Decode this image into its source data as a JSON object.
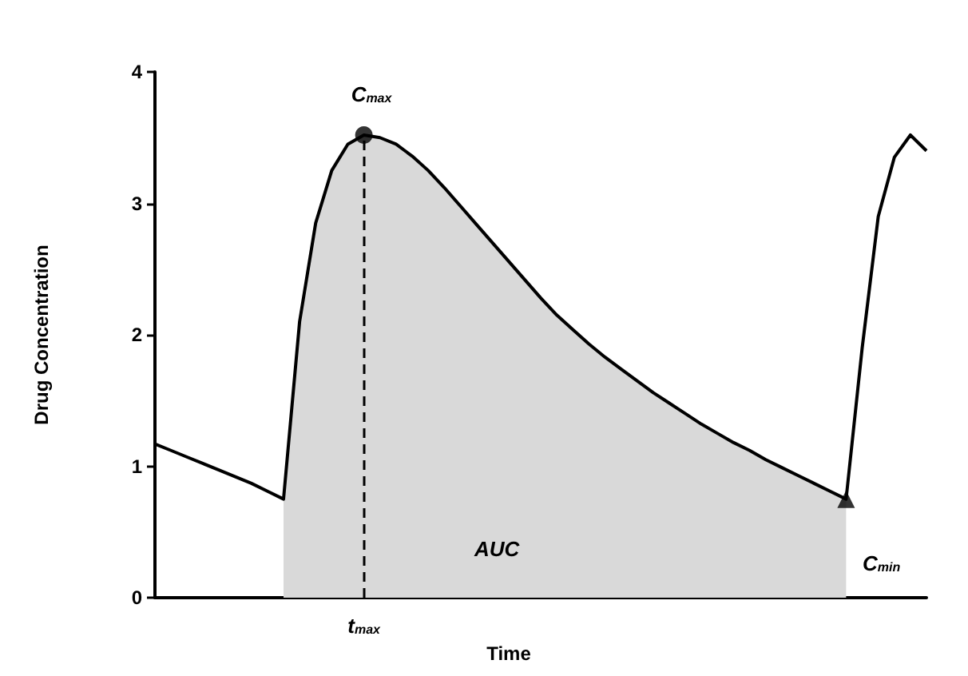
{
  "chart_data": {
    "type": "line",
    "xlabel": "Time",
    "ylabel": "Drug Concentration",
    "categories": [
      null,
      null,
      null,
      null,
      null,
      null,
      null,
      null,
      null,
      null,
      null,
      null,
      null,
      "t$_{max}$",
      null,
      null,
      null,
      null,
      null,
      null,
      null,
      null,
      null,
      null,
      null,
      null,
      null,
      null,
      null,
      null,
      null,
      null,
      null,
      null,
      null,
      null,
      null,
      null,
      null,
      null,
      null,
      null,
      null,
      null,
      null,
      null,
      null,
      null,
      null
    ],
    "series": [
      {
        "type": "area",
        "color": "#d9d9d9",
        "values": [
          null,
          null,
          null,
          null,
          null,
          null,
          null,
          null,
          0.75,
          2.1,
          2.85,
          3.25,
          3.45,
          3.52,
          3.5,
          3.45,
          3.36,
          3.25,
          3.12,
          2.98,
          2.84,
          2.7,
          2.56,
          2.42,
          2.28,
          2.15,
          2.04,
          1.93,
          1.83,
          1.74,
          1.65,
          1.56,
          1.48,
          1.4,
          1.32,
          1.25,
          1.18,
          1.12,
          1.05,
          0.99,
          0.93,
          0.87,
          0.81,
          0.75,
          null,
          null,
          null,
          null,
          null
        ]
      },
      {
        "color": "#000000",
        "values": [
          1.17,
          1.12,
          1.07,
          1.02,
          0.97,
          0.92,
          0.87,
          0.81,
          0.75,
          2.1,
          2.85,
          3.25,
          3.45,
          3.52,
          3.5,
          3.45,
          3.36,
          3.25,
          3.12,
          2.98,
          2.84,
          2.7,
          2.56,
          2.42,
          2.28,
          2.15,
          2.04,
          1.93,
          1.83,
          1.74,
          1.65,
          1.56,
          1.48,
          1.4,
          1.32,
          1.25,
          1.18,
          1.12,
          1.05,
          0.99,
          0.93,
          0.87,
          0.81,
          0.75,
          1.9,
          2.9,
          3.35,
          3.52,
          3.4
        ]
      },
      {
        "type": "scatter",
        "color": "#000000",
        "marker": "circle",
        "values": [
          null,
          null,
          null,
          null,
          null,
          null,
          null,
          null,
          null,
          null,
          null,
          null,
          null,
          3.52,
          null,
          null,
          null,
          null,
          null,
          null,
          null,
          null,
          null,
          null,
          null,
          null,
          null,
          null,
          null,
          null,
          null,
          null,
          null,
          null,
          null,
          null,
          null,
          null,
          null,
          null,
          null,
          null,
          null,
          null,
          null,
          null,
          null,
          null,
          null
        ]
      },
      {
        "type": "scatter",
        "color": "#000000",
        "marker": "triangle",
        "values": [
          null,
          null,
          null,
          null,
          null,
          null,
          null,
          null,
          null,
          null,
          null,
          null,
          null,
          null,
          null,
          null,
          null,
          null,
          null,
          null,
          null,
          null,
          null,
          null,
          null,
          null,
          null,
          null,
          null,
          null,
          null,
          null,
          null,
          null,
          null,
          null,
          null,
          null,
          null,
          null,
          null,
          null,
          null,
          0.75,
          null,
          null,
          null,
          null,
          null
        ]
      }
    ],
    "ylim": [
      0,
      4
    ],
    "yticks": [
      0,
      1,
      2,
      3,
      4
    ],
    "grid": false,
    "ref_lines": [
      {
        "axis": "x",
        "value": "t$_{max}$",
        "line_style": "dashed"
      }
    ],
    "annotations": [
      {
        "text": "C$_{max}$",
        "x": "t$_{max}$",
        "y": 3.52
      },
      "C$_{min}$",
      "AUC"
    ]
  }
}
